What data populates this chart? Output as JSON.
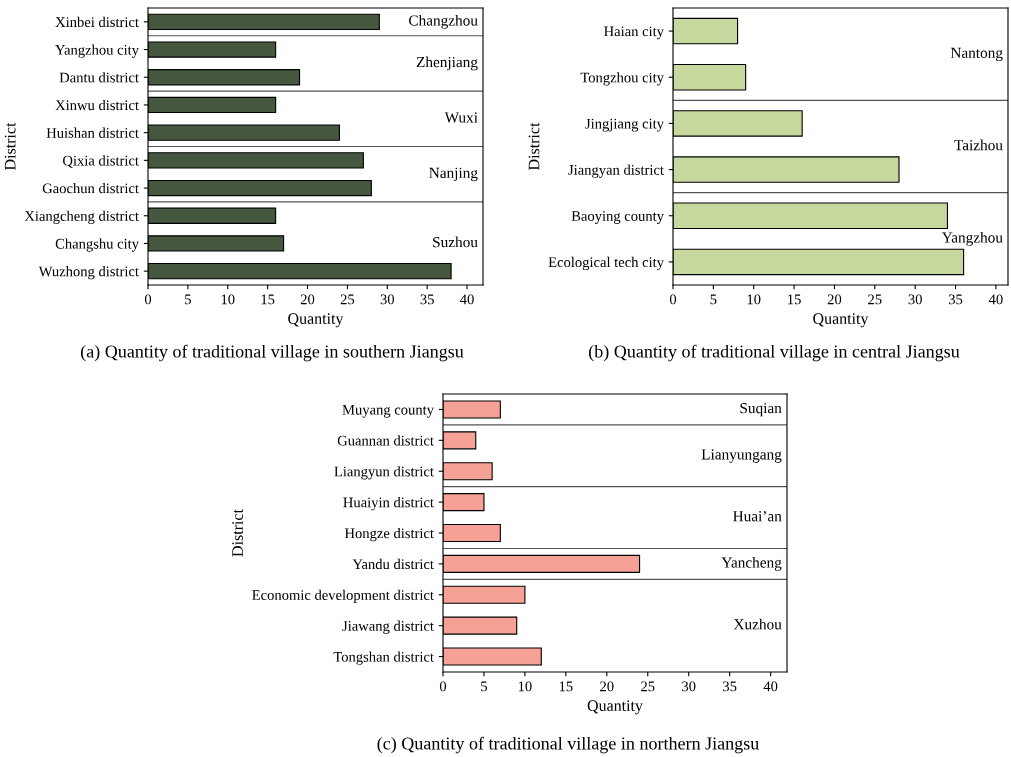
{
  "chart_data": [
    {
      "type": "bar",
      "orientation": "horizontal",
      "title": "(a) Quantity of traditional village in southern Jiangsu",
      "xlabel": "Quantity",
      "ylabel": "District",
      "categories": [
        "Xinbei district",
        "Yangzhou city",
        "Dantu district",
        "Xinwu district",
        "Huishan district",
        "Qixia district",
        "Gaochun district",
        "Xiangcheng district",
        "Changshu city",
        "Wuzhong district"
      ],
      "values": [
        29,
        16,
        19,
        16,
        24,
        27,
        28,
        16,
        17,
        38
      ],
      "color": "#45573f",
      "xlim": [
        0,
        42
      ],
      "xticks": [
        0,
        5,
        10,
        15,
        20,
        25,
        30,
        35,
        40
      ],
      "grid": false,
      "annotations": [
        "Changzhou",
        "Zhenjiang",
        "Wuxi",
        "Nanjing",
        "Suzhou"
      ]
    },
    {
      "type": "bar",
      "orientation": "horizontal",
      "title": "(b) Quantity of traditional village in central Jiangsu",
      "xlabel": "Quantity",
      "ylabel": "District",
      "categories": [
        "Haian city",
        "Tongzhou city",
        "Jingjiang city",
        "Jiangyan district",
        "Baoying county",
        "Ecological tech city"
      ],
      "values": [
        8,
        9,
        16,
        28,
        34,
        36
      ],
      "color": "#c6d89d",
      "xlim": [
        0,
        41.5
      ],
      "xticks": [
        0,
        5,
        10,
        15,
        20,
        25,
        30,
        35,
        40
      ],
      "grid": false,
      "annotations": [
        "Nantong",
        "Taizhou",
        "Yangzhou"
      ]
    },
    {
      "type": "bar",
      "orientation": "horizontal",
      "title": "(c) Quantity of traditional village in northern Jiangsu",
      "xlabel": "Quantity",
      "ylabel": "District",
      "categories": [
        "Muyang county",
        "Guannan district",
        "Liangyun district",
        "Huaiyin district",
        "Hongze district",
        "Yandu district",
        "Economic development district",
        "Jiawang district",
        "Tongshan district"
      ],
      "values": [
        7,
        4,
        6,
        5,
        7,
        24,
        10,
        9,
        12
      ],
      "color": "#f5a195",
      "xlim": [
        0,
        42
      ],
      "xticks": [
        0,
        5,
        10,
        15,
        20,
        25,
        30,
        35,
        40
      ],
      "grid": false,
      "annotations": [
        "Suqian",
        "Lianyungang",
        "Huai’an",
        "Yancheng",
        "Xuzhou"
      ]
    }
  ]
}
